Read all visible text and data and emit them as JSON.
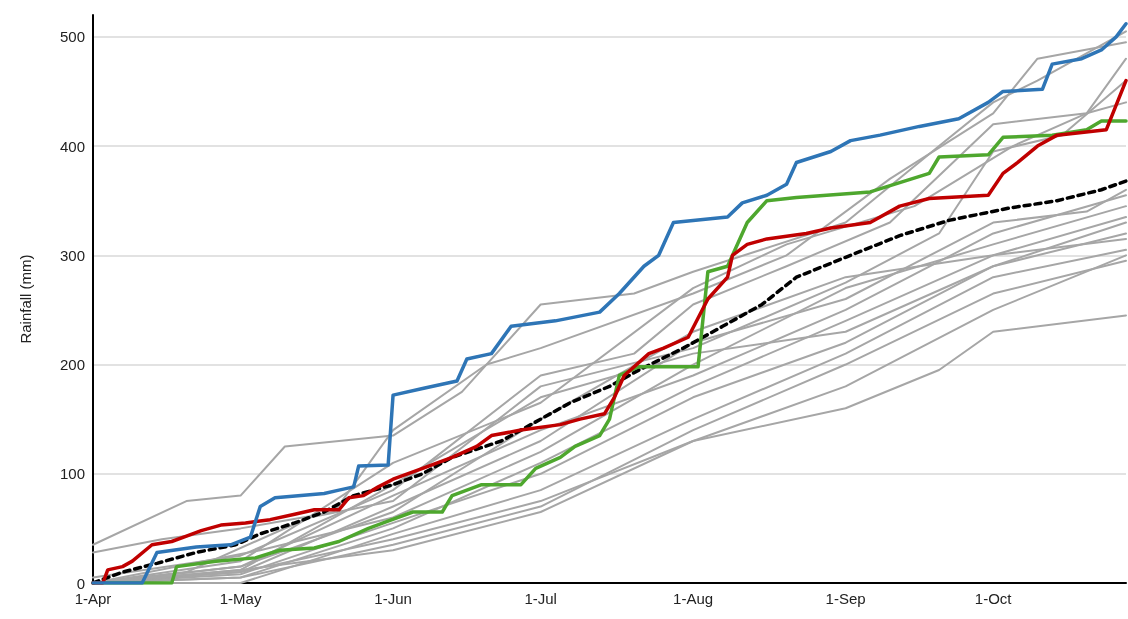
{
  "chart_data": {
    "type": "line",
    "ylabel": "Rainfall (mm)",
    "xlim": [
      "--04-01",
      "--10-28"
    ],
    "xticks": [
      {
        "value": "--04-01",
        "label": "1-Apr"
      },
      {
        "value": "--05-01",
        "label": "1-May"
      },
      {
        "value": "--06-01",
        "label": "1-Jun"
      },
      {
        "value": "--07-01",
        "label": "1-Jul"
      },
      {
        "value": "--08-01",
        "label": "1-Aug"
      },
      {
        "value": "--09-01",
        "label": "1-Sep"
      },
      {
        "value": "--10-01",
        "label": "1-Oct"
      }
    ],
    "ylim": [
      0,
      520
    ],
    "yticks": [
      0,
      100,
      200,
      300,
      400,
      500
    ],
    "grid": "y",
    "marker": "none",
    "line_style": "solid",
    "series": [
      {
        "color": "#a6a6a6",
        "x": [
          "--04-01",
          "--04-20",
          "--05-01",
          "--05-10",
          "--06-01",
          "--06-15",
          "--07-01",
          "--07-20",
          "--08-01",
          "--09-01",
          "--09-20",
          "--10-01",
          "--10-10",
          "--10-28"
        ],
        "values": [
          35,
          75,
          80,
          125,
          135,
          175,
          255,
          265,
          285,
          330,
          400,
          440,
          460,
          505
        ]
      },
      {
        "color": "#a6a6a6",
        "x": [
          "--04-01",
          "--04-15",
          "--05-01",
          "--05-20",
          "--06-01",
          "--06-20",
          "--07-01",
          "--08-01",
          "--08-20",
          "--09-10",
          "--10-01",
          "--10-10",
          "--10-28"
        ],
        "values": [
          28,
          40,
          50,
          65,
          140,
          200,
          215,
          265,
          300,
          370,
          430,
          480,
          495
        ]
      },
      {
        "color": "#a6a6a6",
        "x": [
          "--04-01",
          "--05-01",
          "--06-01",
          "--07-01",
          "--07-20",
          "--08-01",
          "--08-20",
          "--09-10",
          "--10-01",
          "--10-20",
          "--10-28"
        ],
        "values": [
          5,
          25,
          85,
          190,
          210,
          255,
          290,
          330,
          420,
          430,
          480
        ]
      },
      {
        "color": "#a6a6a6",
        "x": [
          "--04-01",
          "--04-20",
          "--05-15",
          "--06-01",
          "--07-01",
          "--08-01",
          "--09-01",
          "--09-20",
          "--10-01",
          "--10-15",
          "--10-28"
        ],
        "values": [
          0,
          10,
          60,
          75,
          180,
          215,
          275,
          320,
          395,
          410,
          460
        ]
      },
      {
        "color": "#a6a6a6",
        "x": [
          "--04-01",
          "--05-01",
          "--06-01",
          "--07-01",
          "--08-01",
          "--08-20",
          "--09-15",
          "--10-05",
          "--10-20",
          "--10-28"
        ],
        "values": [
          0,
          20,
          110,
          165,
          270,
          310,
          345,
          400,
          430,
          440
        ]
      },
      {
        "color": "#a6a6a6",
        "x": [
          "--04-01",
          "--05-01",
          "--06-01",
          "--07-01",
          "--08-01",
          "--09-01",
          "--10-01",
          "--10-20",
          "--10-28"
        ],
        "values": [
          0,
          10,
          70,
          130,
          220,
          260,
          330,
          340,
          360
        ]
      },
      {
        "color": "#a6a6a6",
        "x": [
          "--04-01",
          "--05-01",
          "--06-01",
          "--07-01",
          "--08-01",
          "--09-01",
          "--10-01",
          "--10-28"
        ],
        "values": [
          0,
          15,
          80,
          140,
          190,
          250,
          320,
          355
        ]
      },
      {
        "color": "#a6a6a6",
        "x": [
          "--04-01",
          "--05-05",
          "--06-01",
          "--07-01",
          "--08-01",
          "--09-01",
          "--10-01",
          "--10-28"
        ],
        "values": [
          0,
          30,
          60,
          120,
          200,
          270,
          310,
          345
        ]
      },
      {
        "color": "#a6a6a6",
        "x": [
          "--04-01",
          "--05-01",
          "--06-01",
          "--07-01",
          "--08-01",
          "--09-01",
          "--10-01",
          "--10-28"
        ],
        "values": [
          0,
          5,
          50,
          110,
          180,
          240,
          300,
          335
        ]
      },
      {
        "color": "#a6a6a6",
        "x": [
          "--04-01",
          "--05-01",
          "--06-01",
          "--07-01",
          "--08-01",
          "--09-01",
          "--10-01",
          "--10-28"
        ],
        "values": [
          0,
          12,
          90,
          170,
          210,
          230,
          290,
          330
        ]
      },
      {
        "color": "#a6a6a6",
        "x": [
          "--04-01",
          "--05-01",
          "--06-01",
          "--07-01",
          "--08-01",
          "--09-01",
          "--10-01",
          "--10-28"
        ],
        "values": [
          0,
          8,
          55,
          100,
          170,
          220,
          290,
          320
        ]
      },
      {
        "color": "#a6a6a6",
        "x": [
          "--04-01",
          "--05-01",
          "--06-01",
          "--07-01",
          "--08-01",
          "--09-01",
          "--10-01",
          "--10-28"
        ],
        "values": [
          0,
          15,
          65,
          150,
          230,
          280,
          300,
          315
        ]
      },
      {
        "color": "#a6a6a6",
        "x": [
          "--04-01",
          "--05-01",
          "--05-15",
          "--06-01",
          "--07-01",
          "--08-01",
          "--09-01",
          "--10-01",
          "--10-28"
        ],
        "values": [
          0,
          0,
          20,
          45,
          85,
          150,
          210,
          280,
          305
        ]
      },
      {
        "color": "#a6a6a6",
        "x": [
          "--04-01",
          "--05-01",
          "--06-01",
          "--07-01",
          "--08-01",
          "--09-01",
          "--10-01",
          "--10-28"
        ],
        "values": [
          0,
          10,
          40,
          75,
          130,
          180,
          250,
          300
        ]
      },
      {
        "color": "#a6a6a6",
        "x": [
          "--04-01",
          "--05-01",
          "--06-01",
          "--07-01",
          "--08-01",
          "--09-01",
          "--10-01",
          "--10-28"
        ],
        "values": [
          0,
          5,
          35,
          70,
          140,
          200,
          265,
          295
        ]
      },
      {
        "color": "#a6a6a6",
        "x": [
          "--04-01",
          "--05-01",
          "--06-01",
          "--07-01",
          "--08-01",
          "--09-01",
          "--09-20",
          "--10-01",
          "--10-28"
        ],
        "values": [
          0,
          12,
          30,
          65,
          130,
          160,
          195,
          230,
          245
        ]
      },
      {
        "color": "#000000",
        "line_style": "dashed",
        "x": [
          "--04-01",
          "--04-07",
          "--04-14",
          "--04-22",
          "--04-30",
          "--05-05",
          "--05-12",
          "--05-18",
          "--05-24",
          "--06-01",
          "--06-07",
          "--06-13",
          "--06-23",
          "--06-29",
          "--07-07",
          "--07-15",
          "--07-21",
          "--07-30",
          "--08-07",
          "--08-15",
          "--08-22",
          "--09-02",
          "--09-12",
          "--09-22",
          "--10-04",
          "--10-14",
          "--10-23",
          "--10-28"
        ],
        "values": [
          0,
          10,
          18,
          28,
          35,
          45,
          55,
          65,
          80,
          90,
          100,
          115,
          130,
          145,
          165,
          180,
          195,
          215,
          235,
          255,
          280,
          300,
          318,
          332,
          343,
          350,
          360,
          368
        ]
      },
      {
        "color": "#4ea72e",
        "x": [
          "--04-01",
          "--04-17",
          "--04-18",
          "--04-26",
          "--05-04",
          "--05-09",
          "--05-16",
          "--05-21",
          "--05-27",
          "--05-30",
          "--06-05",
          "--06-11",
          "--06-13",
          "--06-19",
          "--06-27",
          "--06-30",
          "--07-05",
          "--07-08",
          "--07-13",
          "--07-15",
          "--07-17",
          "--07-21",
          "--08-02",
          "--08-04",
          "--08-08",
          "--08-12",
          "--08-16",
          "--08-22",
          "--09-06",
          "--09-18",
          "--09-20",
          "--09-30",
          "--10-03",
          "--10-13",
          "--10-20",
          "--10-23",
          "--10-28"
        ],
        "values": [
          0,
          0,
          15,
          20,
          23,
          30,
          32,
          38,
          50,
          55,
          65,
          65,
          80,
          90,
          90,
          105,
          115,
          125,
          135,
          150,
          190,
          198,
          198,
          285,
          290,
          330,
          350,
          353,
          358,
          375,
          390,
          392,
          408,
          410,
          415,
          423,
          423
        ]
      },
      {
        "color": "#c00000",
        "x": [
          "--04-01",
          "--04-03",
          "--04-04",
          "--04-07",
          "--04-09",
          "--04-13",
          "--04-17",
          "--04-20",
          "--04-23",
          "--04-27",
          "--05-02",
          "--05-07",
          "--05-12",
          "--05-16",
          "--05-21",
          "--05-23",
          "--05-26",
          "--05-29",
          "--06-01",
          "--06-07",
          "--06-13",
          "--06-18",
          "--06-21",
          "--06-27",
          "--07-05",
          "--07-09",
          "--07-14",
          "--07-16",
          "--07-18",
          "--07-23",
          "--07-26",
          "--07-31",
          "--08-04",
          "--08-08",
          "--08-09",
          "--08-12",
          "--08-16",
          "--08-24",
          "--08-29",
          "--09-06",
          "--09-12",
          "--09-18",
          "--09-30",
          "--10-03",
          "--10-06",
          "--10-10",
          "--10-14",
          "--10-24",
          "--10-28"
        ],
        "values": [
          0,
          0,
          12,
          15,
          20,
          35,
          38,
          43,
          48,
          53,
          55,
          58,
          63,
          67,
          67,
          78,
          80,
          88,
          95,
          105,
          115,
          125,
          135,
          140,
          145,
          150,
          155,
          170,
          190,
          210,
          215,
          225,
          260,
          280,
          300,
          310,
          315,
          320,
          325,
          330,
          345,
          352,
          355,
          375,
          385,
          400,
          410,
          415,
          460
        ]
      },
      {
        "color": "#2e75b6",
        "x": [
          "--04-01",
          "--04-11",
          "--04-14",
          "--04-22",
          "--04-29",
          "--05-03",
          "--05-05",
          "--05-08",
          "--05-18",
          "--05-21",
          "--05-24",
          "--05-25",
          "--05-31",
          "--06-01",
          "--06-07",
          "--06-14",
          "--06-16",
          "--06-21",
          "--06-25",
          "--07-04",
          "--07-13",
          "--07-17",
          "--07-22",
          "--07-25",
          "--07-28",
          "--08-08",
          "--08-11",
          "--08-16",
          "--08-20",
          "--08-22",
          "--08-29",
          "--09-02",
          "--09-08",
          "--09-16",
          "--09-24",
          "--09-30",
          "--10-03",
          "--10-11",
          "--10-13",
          "--10-19",
          "--10-23",
          "--10-26",
          "--10-28"
        ],
        "values": [
          0,
          0,
          28,
          33,
          35,
          42,
          70,
          78,
          82,
          85,
          88,
          107,
          108,
          172,
          178,
          185,
          205,
          210,
          235,
          240,
          248,
          265,
          290,
          300,
          330,
          335,
          348,
          355,
          365,
          385,
          395,
          405,
          410,
          418,
          425,
          440,
          450,
          452,
          475,
          480,
          488,
          500,
          512
        ]
      }
    ]
  }
}
